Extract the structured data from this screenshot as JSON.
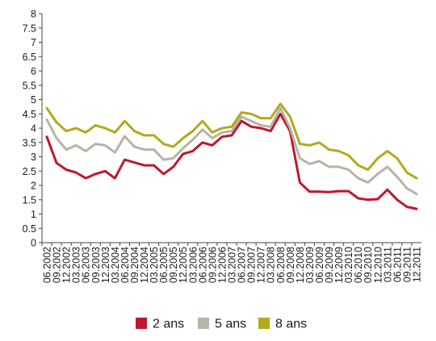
{
  "chart_data": {
    "type": "line",
    "title": "",
    "xlabel": "",
    "ylabel": "",
    "ylim": [
      0,
      8
    ],
    "yticks": [
      "0",
      "0.5",
      "1",
      "1.5",
      "2",
      "2.5",
      "3",
      "3.5",
      "4",
      "4.5",
      "5",
      "5.5",
      "6",
      "6.5",
      "7",
      "7.5",
      "8"
    ],
    "categories": [
      "06.2002",
      "09.2002",
      "12.2002",
      "03.2003",
      "06.2003",
      "09.2003",
      "12.2003",
      "03.2004",
      "06.2004",
      "09.2004",
      "12.2004",
      "03.2005",
      "06.2005",
      "09.2005",
      "12.2005",
      "03.2006",
      "06.2006",
      "09.2006",
      "12.2006",
      "03.2007",
      "06.2007",
      "09.2007",
      "12.2007",
      "03.2008",
      "06.2008",
      "09.2008",
      "12.2008",
      "03.2009",
      "06.2009",
      "09.2009",
      "12.2009",
      "03.2010",
      "06.2010",
      "09.2010",
      "12.2010",
      "03.2011",
      "06.2011",
      "09.2011",
      "12.2011"
    ],
    "grid": false,
    "legend_position": "bottom",
    "series": [
      {
        "name": "2 ans",
        "color": "#c0162c",
        "values": [
          3.7,
          2.78,
          2.55,
          2.45,
          2.25,
          2.4,
          2.5,
          2.25,
          2.9,
          2.8,
          2.7,
          2.7,
          2.4,
          2.65,
          3.1,
          3.2,
          3.5,
          3.4,
          3.7,
          3.75,
          4.25,
          4.05,
          4.0,
          3.9,
          4.5,
          3.9,
          2.1,
          1.78,
          1.78,
          1.77,
          1.8,
          1.8,
          1.55,
          1.5,
          1.52,
          1.85,
          1.5,
          1.25,
          1.18
        ]
      },
      {
        "name": "5 ans",
        "color": "#b7b3a6",
        "values": [
          4.3,
          3.65,
          3.25,
          3.4,
          3.2,
          3.45,
          3.4,
          3.15,
          3.72,
          3.35,
          3.25,
          3.25,
          2.9,
          2.95,
          3.3,
          3.6,
          3.95,
          3.65,
          3.85,
          3.9,
          4.4,
          4.25,
          4.1,
          4.05,
          4.7,
          4.0,
          2.95,
          2.75,
          2.85,
          2.65,
          2.65,
          2.55,
          2.25,
          2.1,
          2.4,
          2.65,
          2.3,
          1.9,
          1.7
        ]
      },
      {
        "name": "8 ans",
        "color": "#b3a91c",
        "values": [
          4.7,
          4.2,
          3.9,
          4.0,
          3.85,
          4.1,
          4.0,
          3.85,
          4.25,
          3.9,
          3.75,
          3.75,
          3.45,
          3.35,
          3.65,
          3.9,
          4.25,
          3.85,
          4.0,
          4.05,
          4.55,
          4.5,
          4.35,
          4.35,
          4.85,
          4.4,
          3.45,
          3.4,
          3.5,
          3.25,
          3.2,
          3.05,
          2.7,
          2.55,
          2.95,
          3.2,
          2.95,
          2.45,
          2.25
        ]
      }
    ]
  }
}
